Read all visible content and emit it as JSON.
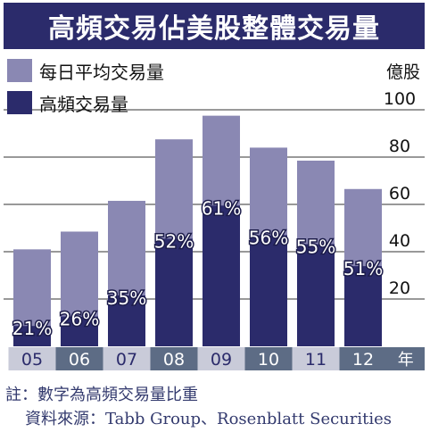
{
  "title": "高頻交易佔美股整體交易量",
  "colors": {
    "title_bg": "#2b2b6b",
    "total_bar": "#8a88b3",
    "hft_bar": "#2b2b6b",
    "axis_band_light": "#c9cbd9",
    "axis_band_dark": "#5d6c85",
    "grid": "#333333"
  },
  "chart_data": {
    "type": "bar",
    "categories": [
      "05",
      "06",
      "07",
      "08",
      "09",
      "10",
      "11",
      "12"
    ],
    "x_unit": "年",
    "y_unit": "億股",
    "ylim": [
      0,
      100
    ],
    "yticks": [
      20,
      40,
      60,
      80,
      100
    ],
    "grid": true,
    "legend_position": "top-left",
    "series": [
      {
        "name": "每日平均交易量",
        "values": [
          41,
          48.5,
          61.5,
          87.5,
          97.5,
          84,
          78.5,
          66.5
        ]
      },
      {
        "name": "高頻交易量",
        "values": [
          8.6,
          12.6,
          21.5,
          45.5,
          59.5,
          47,
          43.2,
          33.9
        ]
      }
    ],
    "labels": [
      "21%",
      "26%",
      "35%",
      "52%",
      "61%",
      "56%",
      "55%",
      "51%"
    ]
  },
  "notes": {
    "line1": "註：數字為高頻交易量比重",
    "line2": "資料來源：Tabb Group、Rosenblatt Securities"
  }
}
